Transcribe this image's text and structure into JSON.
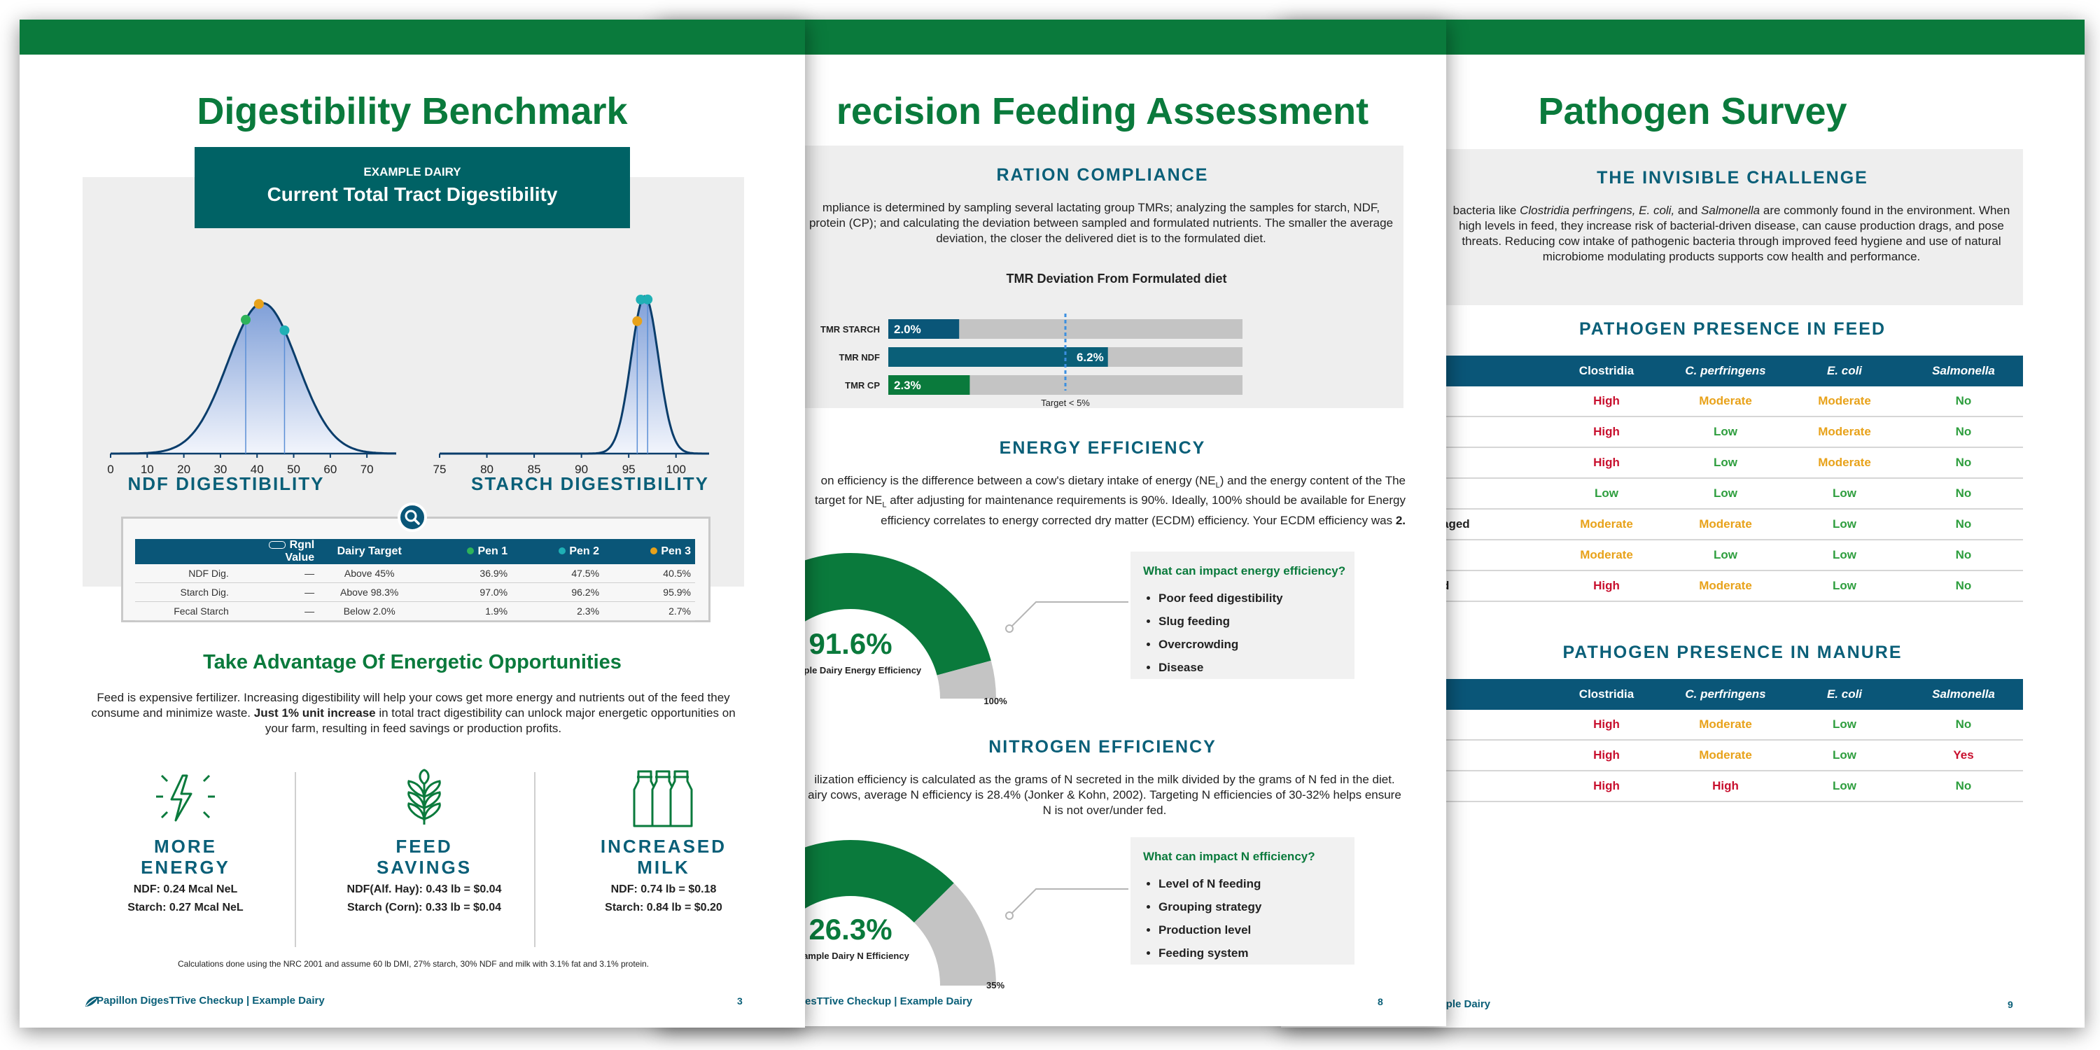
{
  "page3": {
    "title": "Digestibility Benchmark",
    "box_small": "EXAMPLE DAIRY",
    "box_title": "Current Total Tract Digestibility",
    "ndf_ticks": [
      "0",
      "10",
      "20",
      "30",
      "40",
      "50",
      "60",
      "70"
    ],
    "starch_ticks": [
      "75",
      "80",
      "85",
      "90",
      "95",
      "100"
    ],
    "ndf_label": "NDF DIGESTIBILITY",
    "starch_label": "STARCH DIGESTIBILITY",
    "table": {
      "headers": [
        "Rgnl Value",
        "Dairy Target",
        "Pen 1",
        "Pen 2",
        "Pen 3"
      ],
      "rows": [
        [
          "NDF Dig.",
          "—",
          "Above 45%",
          "36.9%",
          "47.5%",
          "40.5%"
        ],
        [
          "Starch Dig.",
          "—",
          "Above 98.3%",
          "97.0%",
          "96.2%",
          "95.9%"
        ],
        [
          "Fecal Starch",
          "—",
          "Below 2.0%",
          "1.9%",
          "2.3%",
          "2.7%"
        ]
      ]
    },
    "opp_title": "Take Advantage Of Energetic Opportunities",
    "opp_para_1": "Feed is expensive fertilizer. Increasing digestibility will help your cows get more energy and nutrients out of the feed they consume and minimize waste.",
    "opp_para_bold": "Just 1% unit increase",
    "opp_para_2": "in total tract digestibility can unlock major energetic opportunities on your farm, resulting in feed savings or production profits.",
    "benefits": [
      {
        "title1": "MORE",
        "title2": "ENERGY",
        "line1": "NDF: 0.24 Mcal NeL",
        "line2": "Starch: 0.27 Mcal NeL",
        "icon": "lightning-icon"
      },
      {
        "title1": "FEED",
        "title2": "SAVINGS",
        "line1": "NDF(Alf. Hay): 0.43 lb = $0.04",
        "line2": "Starch (Corn): 0.33 lb = $0.04",
        "icon": "wheat-icon"
      },
      {
        "title1": "INCREASED",
        "title2": "MILK",
        "line1": "NDF: 0.74 lb = $0.18",
        "line2": "Starch: 0.84 lb = $0.20",
        "icon": "milk-bottles-icon"
      }
    ],
    "calc_note": "Calculations done using the NRC 2001 and assume 60 lb DMI, 27% starch, 30% NDF and milk with 3.1% fat and 3.1% protein.",
    "footer": "Papillon DigesTTive Checkup | Example Dairy",
    "page_number": "3"
  },
  "page8": {
    "title": "recision Feeding Assessment",
    "ration_head": "RATION COMPLIANCE",
    "ration_para": "mpliance is determined by sampling several lactating group TMRs; analyzing the samples for starch, NDF, protein (CP); and calculating the deviation between sampled and formulated nutrients. The smaller the average deviation, the closer the delivered diet is to the formulated diet.",
    "tmr_chart": {
      "title": "TMR Deviation From Formulated diet",
      "bars": [
        {
          "label": "TMR STARCH",
          "value": 2.0,
          "text": "2.0%"
        },
        {
          "label": "TMR NDF",
          "value": 6.2,
          "text": "6.2%"
        },
        {
          "label": "TMR CP",
          "value": 2.3,
          "text": "2.3%"
        }
      ],
      "target_label": "Target < 5%"
    },
    "energy_head": "ENERGY EFFICIENCY",
    "energy_para_1": "on efficiency is the difference between a cow's dietary intake of energy (NE",
    "energy_para_sub": "L",
    "energy_para_2": ") and the energy content of the",
    "energy_para_3": "The target for NE",
    "energy_para_4": "after adjusting for maintenance requirements is 90%. Ideally, 100% should be available for",
    "energy_para_5": "Energy efficiency correlates to energy corrected dry matter (ECDM) efficiency. Your ECDM efficiency was",
    "energy_para_bold": "2.",
    "energy_gauge": {
      "value": 91.6,
      "text": "91.6%",
      "label": "Example Dairy Energy Efficiency",
      "max_text": "100%"
    },
    "energy_callout": {
      "title": "What can impact energy efficiency?",
      "items": [
        "Poor feed digestibility",
        "Slug feeding",
        "Overcrowding",
        "Disease"
      ]
    },
    "nitrogen_head": "NITROGEN EFFICIENCY",
    "nitrogen_para": "ilization efficiency is calculated as the grams of N secreted in the milk divided by the grams of N fed in the diet. airy cows, average N efficiency is 28.4% (Jonker & Kohn, 2002). Targeting N efficiencies of 30-32% helps ensure N is not over/under fed.",
    "nitrogen_gauge": {
      "value": 26.3,
      "text": "26.3%",
      "label": "Example Dairy N Efficiency",
      "max_text": "35%"
    },
    "nitrogen_callout": {
      "title": "What can impact N efficiency?",
      "items": [
        "Level of N feeding",
        "Grouping strategy",
        "Production level",
        "Feeding system"
      ]
    },
    "footer": "esTTive Checkup | Example Dairy",
    "page_number": "8"
  },
  "page9": {
    "title": "Pathogen Survey",
    "challenge_head": "THE INVISIBLE CHALLENGE",
    "challenge_para_1": "bacteria like",
    "challenge_it_1": "Clostridia perfringens, E. coli,",
    "challenge_para_2": "and",
    "challenge_it_2": "Salmonella",
    "challenge_para_3": "are commonly found in the environment. When high levels in feed, they increase risk of bacterial-driven disease, can cause production drags, and pose threats. Reducing cow intake of pathogenic bacteria through improved feed hygiene and use of natural microbiome modulating products supports cow health and performance.",
    "feed_head": "PATHOGEN PRESENCE IN FEED",
    "columns": [
      "Clostridia",
      "C. perfringens",
      "E. coli",
      "Salmonella"
    ],
    "feed_rows": [
      {
        "label": "",
        "vals": [
          "High",
          "Moderate",
          "Moderate",
          "No"
        ]
      },
      {
        "label": "",
        "vals": [
          "High",
          "Low",
          "Moderate",
          "No"
        ]
      },
      {
        "label": "",
        "vals": [
          "High",
          "Low",
          "Moderate",
          "No"
        ]
      },
      {
        "label": "",
        "vals": [
          "Low",
          "Low",
          "Low",
          "No"
        ]
      },
      {
        "label": "aged",
        "vals": [
          "Moderate",
          "Moderate",
          "Low",
          "No"
        ]
      },
      {
        "label": "",
        "vals": [
          "Moderate",
          "Low",
          "Low",
          "No"
        ]
      },
      {
        "label": "d",
        "vals": [
          "High",
          "Moderate",
          "Low",
          "No"
        ]
      }
    ],
    "manure_head": "PATHOGEN PRESENCE IN MANURE",
    "manure_rows": [
      {
        "label": "",
        "vals": [
          "High",
          "Moderate",
          "Low",
          "No"
        ]
      },
      {
        "label": "",
        "vals": [
          "High",
          "Moderate",
          "Low",
          "Yes"
        ]
      },
      {
        "label": "",
        "vals": [
          "High",
          "High",
          "Low",
          "No"
        ]
      }
    ],
    "footer": "esTTive Checkup | Example Dairy",
    "page_number": "9"
  },
  "colors": {
    "green": "#0a7a3c",
    "teal": "#0a5f78",
    "navy": "#0a5678",
    "high": "#c8102e",
    "moderate": "#e8a21a",
    "low": "#2e9e3e"
  }
}
